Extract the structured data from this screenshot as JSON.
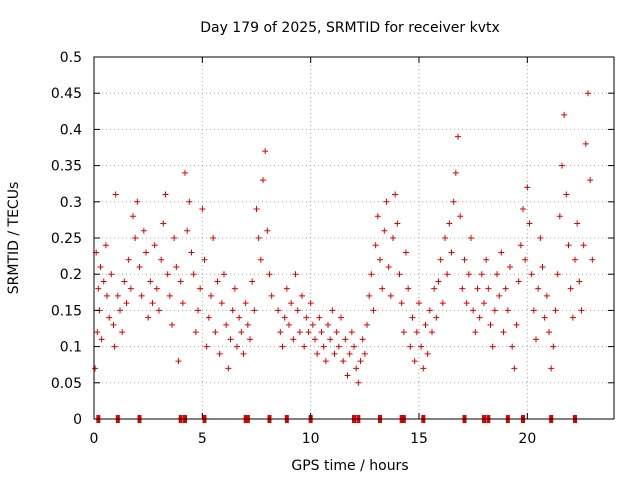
{
  "chart_data": {
    "type": "scatter",
    "title": "Day 179 of 2025, SRMTID for receiver kvtx",
    "xlabel": "GPS time / hours",
    "ylabel": "SRMTID / TECUs",
    "xlim": [
      0,
      24
    ],
    "ylim": [
      0,
      0.5
    ],
    "grid": true,
    "marker": "+",
    "color": "#e00000",
    "x_ticks": [
      0,
      5,
      10,
      15,
      20
    ],
    "x_tick_labels": [
      "0",
      "5",
      "10",
      "15",
      "20"
    ],
    "y_ticks": [
      0,
      0.05,
      0.1,
      0.15,
      0.2,
      0.25,
      0.3,
      0.35,
      0.4,
      0.45,
      0.5
    ],
    "y_tick_labels": [
      "0",
      "0.05",
      "0.1",
      "0.15",
      "0.2",
      "0.25",
      "0.3",
      "0.35",
      "0.4",
      "0.45",
      "0.5"
    ],
    "series": [
      {
        "name": "SRMTID",
        "points": [
          [
            0.05,
            0.07
          ],
          [
            0.1,
            0.23
          ],
          [
            0.15,
            0.12
          ],
          [
            0.2,
            0.18
          ],
          [
            0.25,
            0.15
          ],
          [
            0.3,
            0.21
          ],
          [
            0.35,
            0.11
          ],
          [
            0.45,
            0.19
          ],
          [
            0.55,
            0.24
          ],
          [
            0.6,
            0.17
          ],
          [
            0.7,
            0.14
          ],
          [
            0.8,
            0.2
          ],
          [
            0.9,
            0.13
          ],
          [
            0.95,
            0.1
          ],
          [
            1.0,
            0.31
          ],
          [
            1.1,
            0.17
          ],
          [
            1.2,
            0.15
          ],
          [
            1.3,
            0.12
          ],
          [
            1.4,
            0.19
          ],
          [
            1.5,
            0.16
          ],
          [
            1.6,
            0.22
          ],
          [
            1.7,
            0.18
          ],
          [
            1.8,
            0.28
          ],
          [
            1.9,
            0.25
          ],
          [
            2.0,
            0.3
          ],
          [
            2.1,
            0.21
          ],
          [
            2.2,
            0.17
          ],
          [
            2.3,
            0.26
          ],
          [
            2.4,
            0.23
          ],
          [
            2.5,
            0.14
          ],
          [
            2.6,
            0.19
          ],
          [
            2.7,
            0.16
          ],
          [
            2.8,
            0.24
          ],
          [
            2.9,
            0.18
          ],
          [
            3.0,
            0.15
          ],
          [
            3.1,
            0.22
          ],
          [
            3.2,
            0.27
          ],
          [
            3.3,
            0.31
          ],
          [
            3.4,
            0.2
          ],
          [
            3.5,
            0.17
          ],
          [
            3.6,
            0.13
          ],
          [
            3.7,
            0.25
          ],
          [
            3.8,
            0.21
          ],
          [
            3.9,
            0.08
          ],
          [
            4.0,
            0.19
          ],
          [
            4.1,
            0.16
          ],
          [
            4.2,
            0.34
          ],
          [
            4.3,
            0.26
          ],
          [
            4.4,
            0.3
          ],
          [
            4.5,
            0.23
          ],
          [
            4.6,
            0.2
          ],
          [
            4.7,
            0.12
          ],
          [
            4.8,
            0.15
          ],
          [
            4.9,
            0.18
          ],
          [
            5.0,
            0.29
          ],
          [
            5.1,
            0.22
          ],
          [
            5.2,
            0.1
          ],
          [
            5.3,
            0.14
          ],
          [
            5.4,
            0.17
          ],
          [
            5.5,
            0.25
          ],
          [
            5.6,
            0.12
          ],
          [
            5.7,
            0.19
          ],
          [
            5.8,
            0.09
          ],
          [
            5.9,
            0.16
          ],
          [
            6.0,
            0.2
          ],
          [
            6.1,
            0.13
          ],
          [
            6.2,
            0.07
          ],
          [
            6.3,
            0.11
          ],
          [
            6.4,
            0.15
          ],
          [
            6.5,
            0.18
          ],
          [
            6.6,
            0.1
          ],
          [
            6.7,
            0.14
          ],
          [
            6.8,
            0.12
          ],
          [
            6.9,
            0.09
          ],
          [
            7.0,
            0.16
          ],
          [
            7.1,
            0.13
          ],
          [
            7.2,
            0.11
          ],
          [
            7.3,
            0.19
          ],
          [
            7.4,
            0.15
          ],
          [
            7.5,
            0.29
          ],
          [
            7.6,
            0.25
          ],
          [
            7.7,
            0.22
          ],
          [
            7.8,
            0.33
          ],
          [
            7.9,
            0.37
          ],
          [
            8.0,
            0.26
          ],
          [
            8.1,
            0.2
          ],
          [
            8.2,
            0.17
          ],
          [
            8.5,
            0.15
          ],
          [
            8.6,
            0.12
          ],
          [
            8.7,
            0.1
          ],
          [
            8.8,
            0.14
          ],
          [
            8.9,
            0.18
          ],
          [
            9.0,
            0.13
          ],
          [
            9.1,
            0.16
          ],
          [
            9.2,
            0.11
          ],
          [
            9.3,
            0.2
          ],
          [
            9.4,
            0.15
          ],
          [
            9.5,
            0.12
          ],
          [
            9.6,
            0.17
          ],
          [
            9.7,
            0.1
          ],
          [
            9.8,
            0.14
          ],
          [
            9.9,
            0.12
          ],
          [
            10.0,
            0.16
          ],
          [
            10.1,
            0.13
          ],
          [
            10.2,
            0.11
          ],
          [
            10.3,
            0.09
          ],
          [
            10.4,
            0.14
          ],
          [
            10.5,
            0.12
          ],
          [
            10.6,
            0.1
          ],
          [
            10.7,
            0.08
          ],
          [
            10.8,
            0.13
          ],
          [
            10.9,
            0.11
          ],
          [
            11.0,
            0.15
          ],
          [
            11.1,
            0.09
          ],
          [
            11.2,
            0.12
          ],
          [
            11.3,
            0.1
          ],
          [
            11.4,
            0.14
          ],
          [
            11.5,
            0.08
          ],
          [
            11.6,
            0.11
          ],
          [
            11.7,
            0.06
          ],
          [
            11.8,
            0.09
          ],
          [
            11.9,
            0.12
          ],
          [
            12.0,
            0.1
          ],
          [
            12.1,
            0.07
          ],
          [
            12.2,
            0.05
          ],
          [
            12.3,
            0.08
          ],
          [
            12.4,
            0.11
          ],
          [
            12.5,
            0.09
          ],
          [
            12.6,
            0.13
          ],
          [
            12.7,
            0.17
          ],
          [
            12.8,
            0.2
          ],
          [
            12.9,
            0.15
          ],
          [
            13.0,
            0.24
          ],
          [
            13.1,
            0.28
          ],
          [
            13.2,
            0.22
          ],
          [
            13.3,
            0.18
          ],
          [
            13.4,
            0.26
          ],
          [
            13.5,
            0.3
          ],
          [
            13.6,
            0.21
          ],
          [
            13.7,
            0.17
          ],
          [
            13.8,
            0.25
          ],
          [
            13.9,
            0.31
          ],
          [
            14.0,
            0.27
          ],
          [
            14.1,
            0.2
          ],
          [
            14.2,
            0.16
          ],
          [
            14.3,
            0.12
          ],
          [
            14.4,
            0.23
          ],
          [
            14.5,
            0.18
          ],
          [
            14.6,
            0.1
          ],
          [
            14.7,
            0.14
          ],
          [
            14.8,
            0.08
          ],
          [
            14.9,
            0.12
          ],
          [
            15.0,
            0.16
          ],
          [
            15.1,
            0.1
          ],
          [
            15.2,
            0.07
          ],
          [
            15.3,
            0.13
          ],
          [
            15.4,
            0.09
          ],
          [
            15.5,
            0.15
          ],
          [
            15.6,
            0.12
          ],
          [
            15.7,
            0.18
          ],
          [
            15.8,
            0.14
          ],
          [
            15.9,
            0.19
          ],
          [
            16.0,
            0.22
          ],
          [
            16.1,
            0.16
          ],
          [
            16.2,
            0.25
          ],
          [
            16.3,
            0.2
          ],
          [
            16.4,
            0.27
          ],
          [
            16.5,
            0.23
          ],
          [
            16.6,
            0.3
          ],
          [
            16.7,
            0.34
          ],
          [
            16.8,
            0.39
          ],
          [
            16.9,
            0.28
          ],
          [
            17.0,
            0.18
          ],
          [
            17.1,
            0.22
          ],
          [
            17.2,
            0.16
          ],
          [
            17.3,
            0.2
          ],
          [
            17.4,
            0.25
          ],
          [
            17.5,
            0.15
          ],
          [
            17.6,
            0.12
          ],
          [
            17.7,
            0.18
          ],
          [
            17.8,
            0.14
          ],
          [
            17.9,
            0.2
          ],
          [
            18.0,
            0.16
          ],
          [
            18.1,
            0.22
          ],
          [
            18.2,
            0.18
          ],
          [
            18.3,
            0.13
          ],
          [
            18.4,
            0.1
          ],
          [
            18.5,
            0.15
          ],
          [
            18.6,
            0.2
          ],
          [
            18.7,
            0.17
          ],
          [
            18.8,
            0.23
          ],
          [
            18.9,
            0.12
          ],
          [
            19.0,
            0.18
          ],
          [
            19.1,
            0.15
          ],
          [
            19.2,
            0.21
          ],
          [
            19.3,
            0.1
          ],
          [
            19.4,
            0.07
          ],
          [
            19.5,
            0.13
          ],
          [
            19.6,
            0.19
          ],
          [
            19.7,
            0.24
          ],
          [
            19.8,
            0.29
          ],
          [
            19.9,
            0.22
          ],
          [
            20.0,
            0.32
          ],
          [
            20.1,
            0.27
          ],
          [
            20.2,
            0.2
          ],
          [
            20.3,
            0.15
          ],
          [
            20.4,
            0.11
          ],
          [
            20.5,
            0.18
          ],
          [
            20.6,
            0.25
          ],
          [
            20.7,
            0.21
          ],
          [
            20.8,
            0.14
          ],
          [
            20.9,
            0.17
          ],
          [
            21.0,
            0.12
          ],
          [
            21.1,
            0.07
          ],
          [
            21.2,
            0.1
          ],
          [
            21.3,
            0.15
          ],
          [
            21.4,
            0.2
          ],
          [
            21.5,
            0.28
          ],
          [
            21.6,
            0.35
          ],
          [
            21.7,
            0.42
          ],
          [
            21.8,
            0.31
          ],
          [
            21.9,
            0.24
          ],
          [
            22.0,
            0.18
          ],
          [
            22.1,
            0.14
          ],
          [
            22.2,
            0.22
          ],
          [
            22.3,
            0.27
          ],
          [
            22.4,
            0.19
          ],
          [
            22.5,
            0.15
          ],
          [
            22.6,
            0.24
          ],
          [
            22.7,
            0.38
          ],
          [
            22.8,
            0.45
          ],
          [
            22.9,
            0.33
          ],
          [
            23.0,
            0.22
          ],
          [
            0.2,
            0.0
          ],
          [
            1.1,
            0.0
          ],
          [
            2.1,
            0.0
          ],
          [
            4.0,
            0.0
          ],
          [
            4.2,
            0.0
          ],
          [
            5.1,
            0.0
          ],
          [
            7.0,
            0.0
          ],
          [
            7.1,
            0.0
          ],
          [
            8.1,
            0.0
          ],
          [
            8.9,
            0.0
          ],
          [
            10.0,
            0.0
          ],
          [
            12.0,
            0.0
          ],
          [
            12.2,
            0.0
          ],
          [
            13.2,
            0.0
          ],
          [
            14.2,
            0.0
          ],
          [
            14.3,
            0.0
          ],
          [
            15.2,
            0.0
          ],
          [
            17.1,
            0.0
          ],
          [
            18.0,
            0.0
          ],
          [
            18.2,
            0.0
          ],
          [
            19.1,
            0.0
          ],
          [
            19.8,
            0.0
          ],
          [
            21.1,
            0.0
          ],
          [
            22.2,
            0.0
          ]
        ]
      }
    ]
  }
}
